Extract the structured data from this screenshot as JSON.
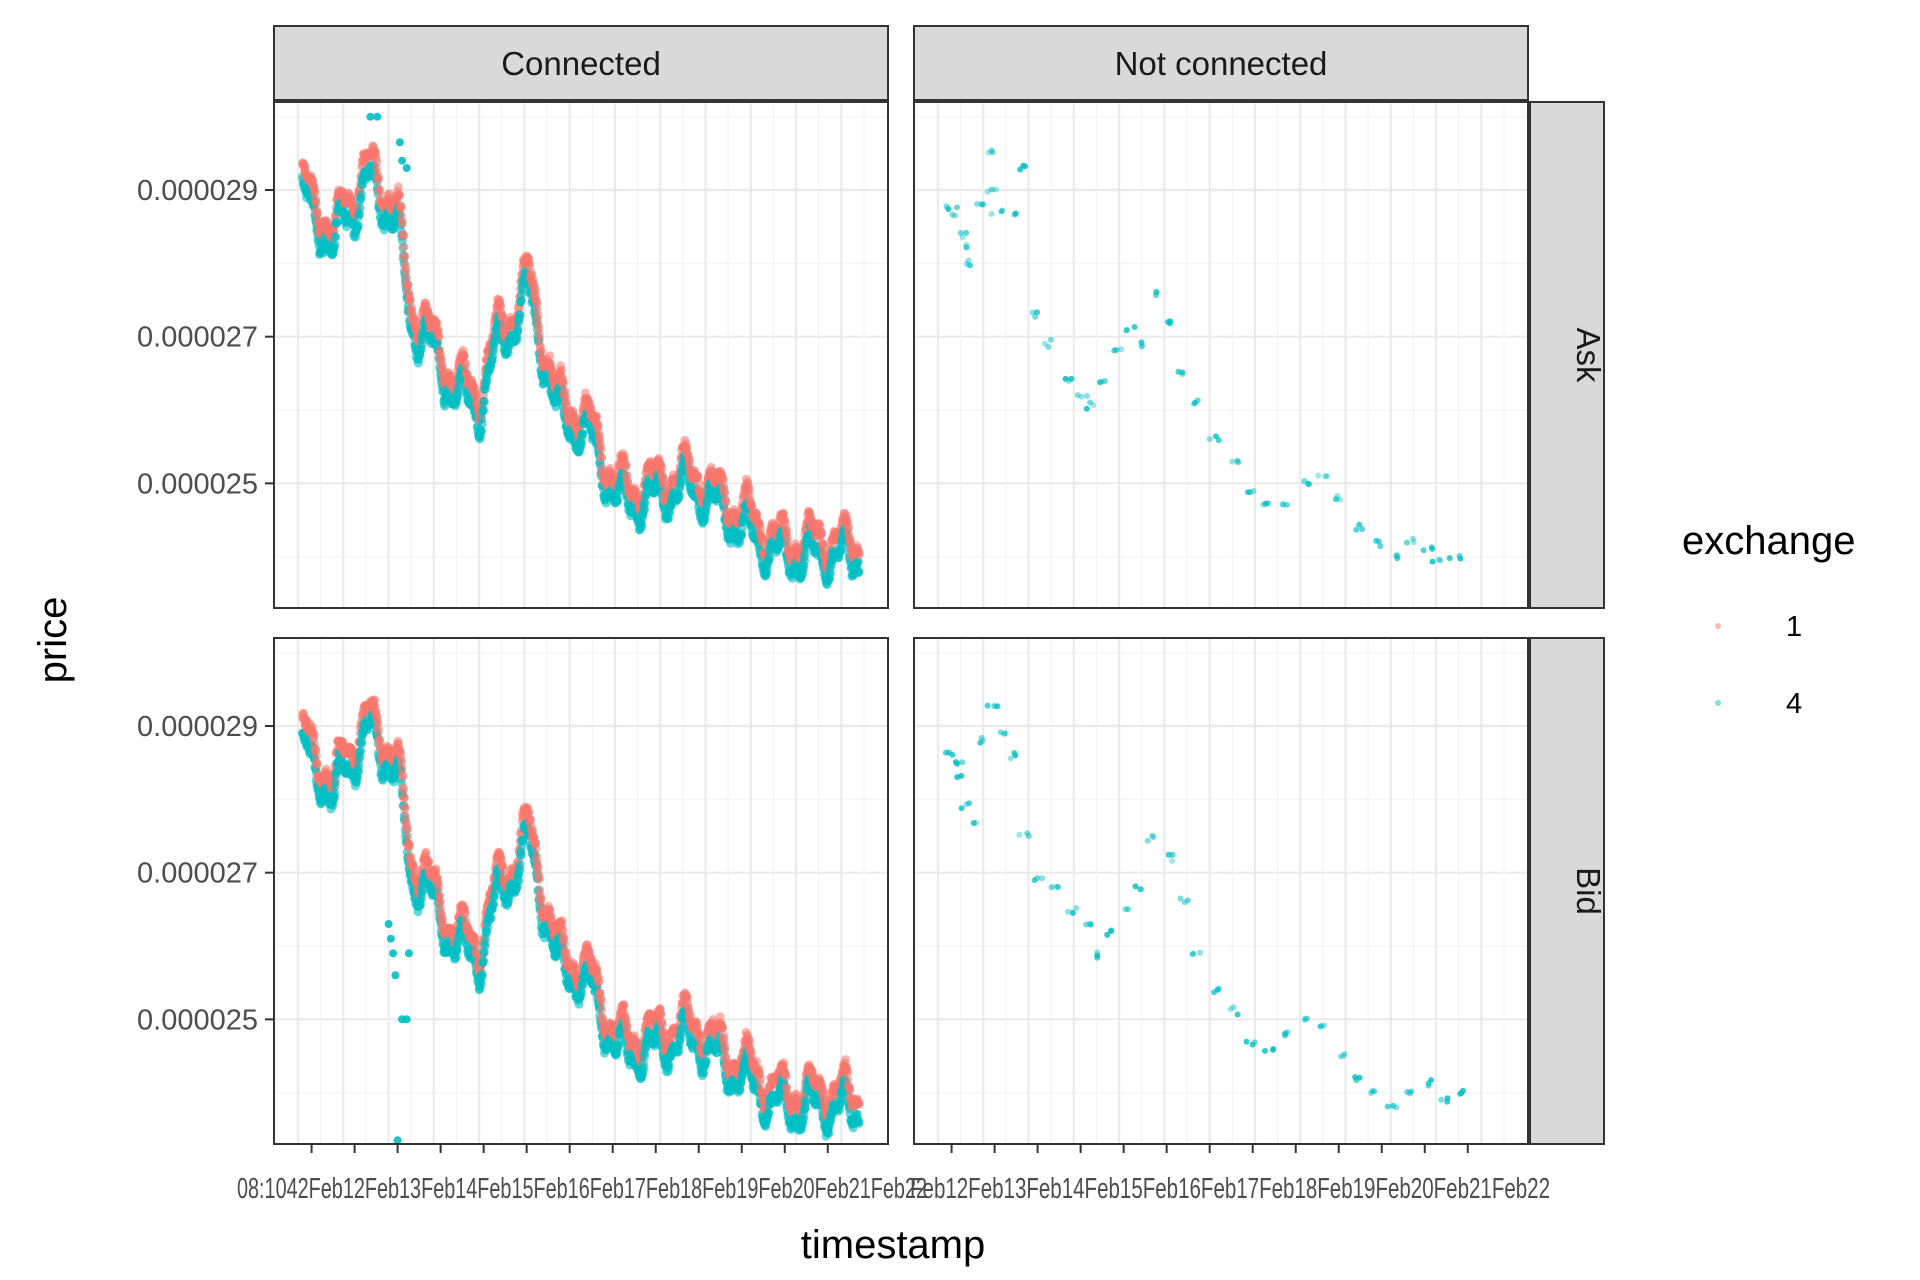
{
  "chart_data": {
    "type": "scatter",
    "facets": {
      "columns": [
        "Connected",
        "Not connected"
      ],
      "rows": [
        "Ask",
        "Bid"
      ]
    },
    "xlabel": "timestamp",
    "ylabel": "price",
    "x_tick_text_connected": "08:1042Feb12Feb13Feb14Feb15Feb16Feb17Feb18Feb19Feb20Feb21Feb22",
    "x_tick_text_not_connected": "Feb12Feb13Feb14Feb15Feb16Feb17Feb18Feb19Feb20Feb21Feb22",
    "y_ticks": [
      "0.000029",
      "0.000027",
      "0.000025"
    ],
    "y_tick_values": [
      2.9e-05,
      2.7e-05,
      2.5e-05
    ],
    "ylim": [
      2.33e-05,
      3.02e-05
    ],
    "x_range_days": [
      0,
      12.5
    ],
    "grid": true,
    "legend": {
      "title": "exchange",
      "position": "right",
      "entries": [
        {
          "label": "1",
          "color": "#F8766D"
        },
        {
          "label": "4",
          "color": "#00BFC4"
        }
      ]
    },
    "colors": {
      "exchange_1": "#F8766D",
      "exchange_4": "#00BFC4",
      "strip_fill": "#D9D9D9",
      "grid": "#EBEBEB"
    },
    "trend_points": [
      [
        0.2,
        2.885e-05
      ],
      [
        0.5,
        2.855e-05
      ],
      [
        0.8,
        2.81e-05
      ],
      [
        1.0,
        2.87e-05
      ],
      [
        1.3,
        2.88e-05
      ],
      [
        1.6,
        2.915e-05
      ],
      [
        1.9,
        2.885e-05
      ],
      [
        2.2,
        2.85e-05
      ],
      [
        2.5,
        2.715e-05
      ],
      [
        2.8,
        2.705e-05
      ],
      [
        3.1,
        2.66e-05
      ],
      [
        3.4,
        2.63e-05
      ],
      [
        3.7,
        2.615e-05
      ],
      [
        4.0,
        2.6e-05
      ],
      [
        4.4,
        2.69e-05
      ],
      [
        4.8,
        2.72e-05
      ],
      [
        5.1,
        2.765e-05
      ],
      [
        5.4,
        2.68e-05
      ],
      [
        5.7,
        2.6e-05
      ],
      [
        6.0,
        2.585e-05
      ],
      [
        6.5,
        2.56e-05
      ],
      [
        7.0,
        2.48e-05
      ],
      [
        7.4,
        2.475e-05
      ],
      [
        7.8,
        2.48e-05
      ],
      [
        8.2,
        2.49e-05
      ],
      [
        8.6,
        2.495e-05
      ],
      [
        8.9,
        2.49e-05
      ],
      [
        9.2,
        2.47e-05
      ],
      [
        9.6,
        2.45e-05
      ],
      [
        10.0,
        2.435e-05
      ],
      [
        10.4,
        2.41e-05
      ],
      [
        10.8,
        2.4e-05
      ],
      [
        11.2,
        2.4e-05
      ],
      [
        11.6,
        2.405e-05
      ],
      [
        12.0,
        2.4e-05
      ],
      [
        12.3,
        2.4e-05
      ]
    ],
    "connected_bid_outliers": [
      [
        2.0,
        2.63e-05
      ],
      [
        2.05,
        2.61e-05
      ],
      [
        2.1,
        2.59e-05
      ],
      [
        2.3,
        2.5e-05
      ],
      [
        2.4,
        2.5e-05
      ],
      [
        2.15,
        2.56e-05
      ],
      [
        2.2,
        2.335e-05
      ],
      [
        2.45,
        2.59e-05
      ]
    ],
    "not_connected_ask_points": [
      [
        0.0,
        2.875e-05
      ],
      [
        0.2,
        2.87e-05
      ],
      [
        0.3,
        2.84e-05
      ],
      [
        0.4,
        2.8e-05
      ],
      [
        0.5,
        2.822e-05
      ],
      [
        0.7,
        2.88e-05
      ],
      [
        0.9,
        2.955e-05
      ],
      [
        1.0,
        2.9e-05
      ],
      [
        1.1,
        2.87e-05
      ],
      [
        1.5,
        2.87e-05
      ],
      [
        1.7,
        2.93e-05
      ],
      [
        2.0,
        2.73e-05
      ],
      [
        2.3,
        2.69e-05
      ],
      [
        2.7,
        2.64e-05
      ],
      [
        3.0,
        2.62e-05
      ],
      [
        3.2,
        2.605e-05
      ],
      [
        3.5,
        2.64e-05
      ],
      [
        3.8,
        2.68e-05
      ],
      [
        4.1,
        2.71e-05
      ],
      [
        4.4,
        2.69e-05
      ],
      [
        4.7,
        2.76e-05
      ],
      [
        5.0,
        2.72e-05
      ],
      [
        5.3,
        2.65e-05
      ],
      [
        5.6,
        2.61e-05
      ],
      [
        6.0,
        2.56e-05
      ],
      [
        6.4,
        2.53e-05
      ],
      [
        6.8,
        2.49e-05
      ],
      [
        7.2,
        2.47e-05
      ],
      [
        7.6,
        2.47e-05
      ],
      [
        8.0,
        2.5e-05
      ],
      [
        8.4,
        2.51e-05
      ],
      [
        8.8,
        2.48e-05
      ],
      [
        9.2,
        2.44e-05
      ],
      [
        9.6,
        2.42e-05
      ],
      [
        10.0,
        2.4e-05
      ],
      [
        10.4,
        2.42e-05
      ],
      [
        10.8,
        2.41e-05
      ],
      [
        11.0,
        2.395e-05
      ],
      [
        11.4,
        2.4e-05
      ]
    ],
    "not_connected_bid_points": [
      [
        0.0,
        2.86e-05
      ],
      [
        0.2,
        2.85e-05
      ],
      [
        0.3,
        2.83e-05
      ],
      [
        0.4,
        2.79e-05
      ],
      [
        0.6,
        2.77e-05
      ],
      [
        0.8,
        2.88e-05
      ],
      [
        1.0,
        2.93e-05
      ],
      [
        1.2,
        2.89e-05
      ],
      [
        1.5,
        2.86e-05
      ],
      [
        1.7,
        2.75e-05
      ],
      [
        2.0,
        2.69e-05
      ],
      [
        2.4,
        2.68e-05
      ],
      [
        2.8,
        2.65e-05
      ],
      [
        3.1,
        2.63e-05
      ],
      [
        3.4,
        2.59e-05
      ],
      [
        3.7,
        2.62e-05
      ],
      [
        4.0,
        2.65e-05
      ],
      [
        4.3,
        2.68e-05
      ],
      [
        4.6,
        2.75e-05
      ],
      [
        5.0,
        2.72e-05
      ],
      [
        5.3,
        2.66e-05
      ],
      [
        5.6,
        2.59e-05
      ],
      [
        6.0,
        2.54e-05
      ],
      [
        6.4,
        2.51e-05
      ],
      [
        6.8,
        2.47e-05
      ],
      [
        7.2,
        2.46e-05
      ],
      [
        7.6,
        2.48e-05
      ],
      [
        8.0,
        2.5e-05
      ],
      [
        8.4,
        2.49e-05
      ],
      [
        8.8,
        2.45e-05
      ],
      [
        9.2,
        2.42e-05
      ],
      [
        9.6,
        2.4e-05
      ],
      [
        10.0,
        2.38e-05
      ],
      [
        10.4,
        2.4e-05
      ],
      [
        10.8,
        2.41e-05
      ],
      [
        11.2,
        2.39e-05
      ],
      [
        11.5,
        2.4e-05
      ]
    ]
  }
}
